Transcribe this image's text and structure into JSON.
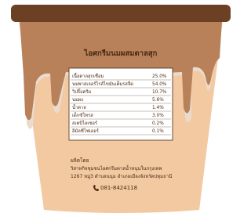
{
  "label": {
    "title": "ไอศกรีมนมผสมตาลสุก",
    "ingredients": [
      [
        "เนื้อตาลสุกเชื่อม",
        "25.0%"
      ],
      [
        "นมพาสเจอร์ไรส์ไขมันเต็มรสจืด",
        "54.0%"
      ],
      [
        "วิปปิ้งครีม",
        "10.7%"
      ],
      [
        "นมผง",
        "5.6%"
      ],
      [
        "น้ำตาล",
        "1.4%"
      ],
      [
        "เด็กซ์โทรส",
        "3.0%"
      ],
      [
        "สเตบิไลเซอร์",
        "0.2%"
      ],
      [
        "อิมัลซิไฟเออร์",
        "0.1%"
      ]
    ],
    "producer_heading": "ผลิตโดย",
    "producer_name": "วิสาหกิจชุมชนไอศกรีมตาลน้ำหนุนในกรุงเทพ",
    "producer_address": "1267 หมู่3 ตำบลนนุม อำเภอเมืองจังหวัดปทุมธานี",
    "phone": "081-8424118"
  }
}
